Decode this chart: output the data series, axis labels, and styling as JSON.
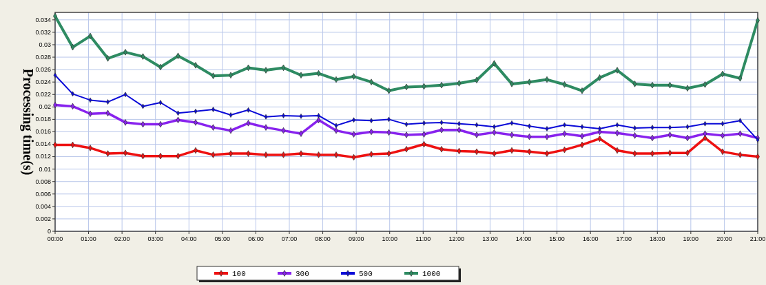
{
  "chart_data": {
    "type": "line",
    "ylabel": "Processing time(s)",
    "x": [
      0,
      0.525,
      1.05,
      1.575,
      2.1,
      2.625,
      3.15,
      3.675,
      4.2,
      4.725,
      5.25,
      5.775,
      6.3,
      6.825,
      7.35,
      7.875,
      8.4,
      8.925,
      9.45,
      9.975,
      10.5,
      11.025,
      11.55,
      12.075,
      12.6,
      13.125,
      13.65,
      14.175,
      14.7,
      15.225,
      15.75,
      16.275,
      16.8,
      17.325,
      17.85,
      18.375,
      18.9,
      19.425,
      19.95,
      20.475,
      21
    ],
    "xlim": [
      0,
      21
    ],
    "xticks": [
      {
        "value": 0,
        "label": "00:00"
      },
      {
        "value": 1,
        "label": "01:00"
      },
      {
        "value": 2,
        "label": "02:00"
      },
      {
        "value": 3,
        "label": "03:00"
      },
      {
        "value": 4,
        "label": "04:00"
      },
      {
        "value": 5,
        "label": "05:00"
      },
      {
        "value": 6,
        "label": "06:00"
      },
      {
        "value": 7,
        "label": "07:00"
      },
      {
        "value": 8,
        "label": "08:00"
      },
      {
        "value": 9,
        "label": "09:00"
      },
      {
        "value": 10,
        "label": "10:00"
      },
      {
        "value": 11,
        "label": "11:00"
      },
      {
        "value": 12,
        "label": "12:00"
      },
      {
        "value": 13,
        "label": "13:00"
      },
      {
        "value": 14,
        "label": "14:00"
      },
      {
        "value": 15,
        "label": "15:00"
      },
      {
        "value": 16,
        "label": "16:00"
      },
      {
        "value": 17,
        "label": "17:00"
      },
      {
        "value": 18,
        "label": "18:00"
      },
      {
        "value": 19,
        "label": "19:00"
      },
      {
        "value": 20,
        "label": "20:00"
      },
      {
        "value": 21,
        "label": "21:00"
      }
    ],
    "ylim": [
      0,
      0.0352
    ],
    "yticks": [
      0,
      0.002,
      0.004,
      0.006,
      0.008,
      0.01,
      0.012,
      0.014,
      0.016,
      0.018,
      0.02,
      0.022,
      0.024,
      0.026,
      0.028,
      0.03,
      0.032,
      0.034
    ],
    "grid": true,
    "legend": "bottom",
    "marker": "diamond",
    "line_style": "solid",
    "series": [
      {
        "name": "100",
        "color": "#ee1111",
        "values": [
          0.0139,
          0.0139,
          0.0134,
          0.0125,
          0.0126,
          0.0121,
          0.0121,
          0.0121,
          0.013,
          0.0123,
          0.0125,
          0.0125,
          0.0123,
          0.0123,
          0.0125,
          0.0123,
          0.0123,
          0.0119,
          0.0124,
          0.0125,
          0.0132,
          0.014,
          0.0132,
          0.0129,
          0.0128,
          0.0125,
          0.013,
          0.0128,
          0.0125,
          0.0131,
          0.0139,
          0.0149,
          0.013,
          0.0125,
          0.0125,
          0.0126,
          0.0126,
          0.015,
          0.0128,
          0.0123,
          0.012
        ]
      },
      {
        "name": "300",
        "color": "#8822ee",
        "values": [
          0.0203,
          0.0201,
          0.0189,
          0.019,
          0.0175,
          0.0172,
          0.0172,
          0.0179,
          0.0175,
          0.0167,
          0.0162,
          0.0174,
          0.0167,
          0.0162,
          0.0157,
          0.0179,
          0.0162,
          0.0156,
          0.016,
          0.0159,
          0.0155,
          0.0156,
          0.0163,
          0.0163,
          0.0155,
          0.0159,
          0.0155,
          0.0152,
          0.0152,
          0.0157,
          0.0153,
          0.016,
          0.0158,
          0.0154,
          0.015,
          0.0155,
          0.015,
          0.0157,
          0.0154,
          0.0157,
          0.015
        ]
      },
      {
        "name": "500",
        "color": "#0a0ad8",
        "values": [
          0.0251,
          0.0221,
          0.0211,
          0.0208,
          0.022,
          0.0201,
          0.0207,
          0.019,
          0.0193,
          0.0196,
          0.0187,
          0.0195,
          0.0184,
          0.0186,
          0.0185,
          0.0186,
          0.017,
          0.0179,
          0.0178,
          0.018,
          0.0172,
          0.0174,
          0.0175,
          0.0173,
          0.0171,
          0.0168,
          0.0174,
          0.0169,
          0.0165,
          0.0171,
          0.0168,
          0.0165,
          0.0171,
          0.0166,
          0.0167,
          0.0167,
          0.0168,
          0.0173,
          0.0173,
          0.0178,
          0.0147
        ]
      },
      {
        "name": "1000",
        "color": "#2e8b62",
        "values": [
          0.0346,
          0.0296,
          0.0314,
          0.0278,
          0.0288,
          0.0281,
          0.0264,
          0.0282,
          0.0267,
          0.025,
          0.0251,
          0.0263,
          0.0259,
          0.0263,
          0.0251,
          0.0254,
          0.0244,
          0.0249,
          0.024,
          0.0226,
          0.0232,
          0.0233,
          0.0235,
          0.0238,
          0.0243,
          0.027,
          0.0237,
          0.024,
          0.0244,
          0.0236,
          0.0226,
          0.0247,
          0.0259,
          0.0237,
          0.0235,
          0.0235,
          0.023,
          0.0236,
          0.0253,
          0.0246,
          0.0339
        ]
      }
    ]
  }
}
